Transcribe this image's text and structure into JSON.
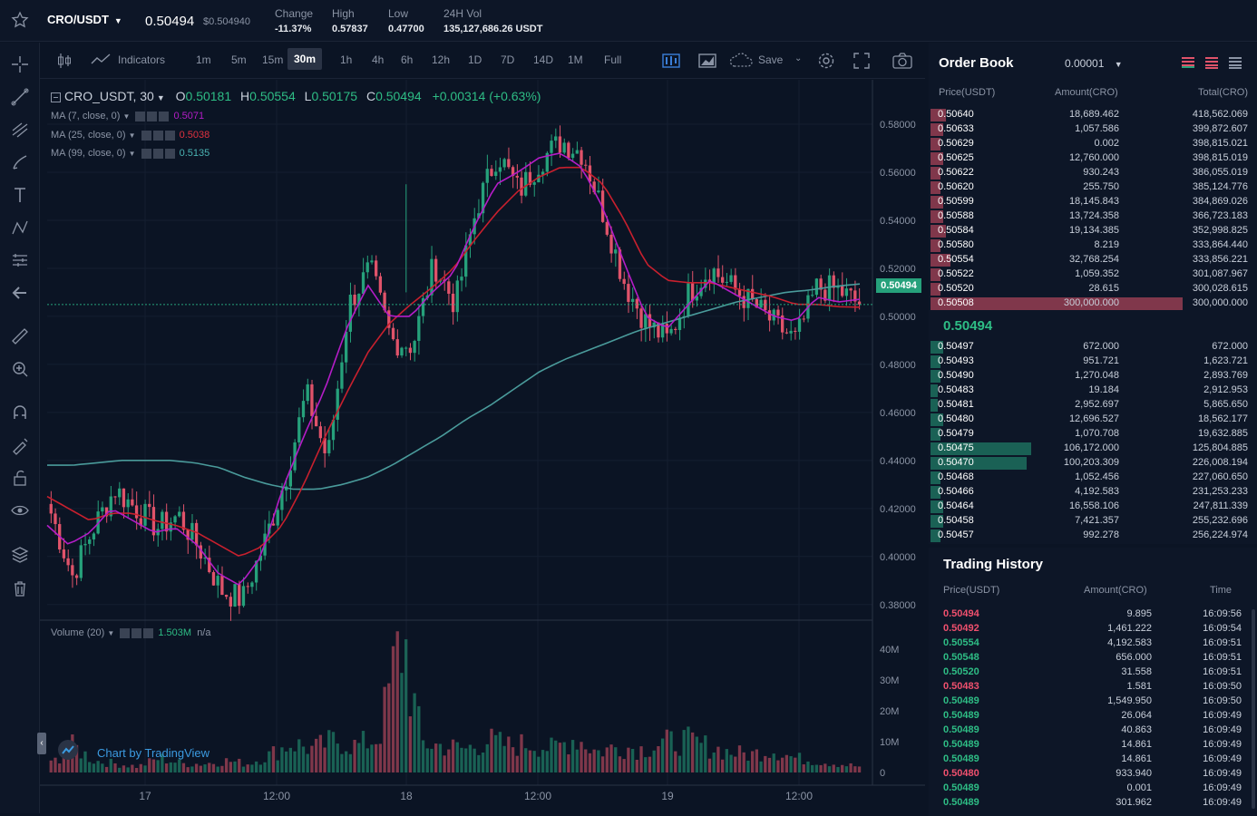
{
  "header": {
    "symbol": "CRO/USDT",
    "caret": "▼",
    "price": "0.50494",
    "price_usd": "$0.504940",
    "change_label": "Change",
    "change_value": "-11.37%",
    "high_label": "High",
    "high_value": "0.57837",
    "low_label": "Low",
    "low_value": "0.47700",
    "vol_label": "24H Vol",
    "vol_value": "135,127,686.26 USDT"
  },
  "toolbar": {
    "indicators": "Indicators",
    "intervals": [
      "1m",
      "5m",
      "15m",
      "30m",
      "1h",
      "4h",
      "6h",
      "12h",
      "1D",
      "7D",
      "14D",
      "1M",
      "Full"
    ],
    "active_interval": "30m",
    "save": "Save"
  },
  "legend": {
    "symbol": "CRO_USDT, 30",
    "o_label": "O",
    "o": "0.50181",
    "h_label": "H",
    "h": "0.50554",
    "l_label": "L",
    "l": "0.50175",
    "c_label": "C",
    "c": "0.50494",
    "chg": "+0.00314 (+0.63%)",
    "ma7_label": "MA (7, close, 0)",
    "ma7_value": "0.5071",
    "ma25_label": "MA (25, close, 0)",
    "ma25_value": "0.5038",
    "ma99_label": "MA (99, close, 0)",
    "ma99_value": "0.5135",
    "volume_label": "Volume (20)",
    "volume_value": "1.503M",
    "volume_na": "n/a",
    "last_price_tag": "0.50494",
    "attribution": "Chart by TradingView"
  },
  "colors": {
    "up": "#26a17b",
    "down": "#e0536a",
    "ma7": "#b41dc7",
    "ma25": "#c8202e",
    "ma99": "#4a9b9b",
    "bg": "#0b1424"
  },
  "chart_data": {
    "type": "candlestick",
    "y_ticks": [
      "0.58000",
      "0.56000",
      "0.54000",
      "0.52000",
      "0.50000",
      "0.48000",
      "0.46000",
      "0.44000",
      "0.42000",
      "0.40000",
      "0.38000"
    ],
    "ylim": [
      0.3735,
      0.5985
    ],
    "x_ticks": [
      "17",
      "12:00",
      "18",
      "12:00",
      "19",
      "12:00"
    ],
    "volume_ticks": [
      "40M",
      "30M",
      "20M",
      "10M",
      "0"
    ],
    "volume_max": 45000000,
    "close_anchors": [
      0.418,
      0.392,
      0.412,
      0.428,
      0.42,
      0.412,
      0.417,
      0.403,
      0.386,
      0.382,
      0.405,
      0.432,
      0.468,
      0.44,
      0.505,
      0.52,
      0.49,
      0.488,
      0.522,
      0.505,
      0.545,
      0.568,
      0.552,
      0.565,
      0.573,
      0.568,
      0.542,
      0.513,
      0.497,
      0.49,
      0.51,
      0.52,
      0.512,
      0.505,
      0.497,
      0.49,
      0.512,
      0.511,
      0.50494
    ],
    "ma7_anchors": [
      0.413,
      0.405,
      0.41,
      0.42,
      0.415,
      0.41,
      0.412,
      0.405,
      0.393,
      0.388,
      0.4,
      0.428,
      0.45,
      0.47,
      0.495,
      0.513,
      0.5,
      0.5,
      0.51,
      0.518,
      0.538,
      0.555,
      0.56,
      0.566,
      0.568,
      0.562,
      0.545,
      0.522,
      0.5,
      0.495,
      0.505,
      0.515,
      0.51,
      0.505,
      0.5,
      0.498,
      0.508,
      0.506,
      0.5071
    ],
    "ma25_anchors": [
      0.425,
      0.42,
      0.415,
      0.418,
      0.418,
      0.415,
      0.413,
      0.41,
      0.405,
      0.4,
      0.404,
      0.413,
      0.43,
      0.45,
      0.468,
      0.485,
      0.497,
      0.505,
      0.512,
      0.52,
      0.532,
      0.543,
      0.552,
      0.558,
      0.562,
      0.562,
      0.555,
      0.54,
      0.522,
      0.515,
      0.514,
      0.514,
      0.512,
      0.51,
      0.508,
      0.505,
      0.505,
      0.504,
      0.5038
    ],
    "ma99_anchors": [
      0.438,
      0.438,
      0.439,
      0.44,
      0.44,
      0.44,
      0.439,
      0.437,
      0.433,
      0.43,
      0.428,
      0.428,
      0.43,
      0.433,
      0.438,
      0.444,
      0.45,
      0.457,
      0.463,
      0.47,
      0.477,
      0.482,
      0.486,
      0.49,
      0.494,
      0.497,
      0.5,
      0.503,
      0.506,
      0.508,
      0.51,
      0.511,
      0.5125,
      0.5135
    ],
    "volume_anchors": [
      3,
      9,
      4,
      3,
      2,
      5,
      3,
      3,
      4,
      3,
      6,
      10,
      8,
      11,
      9,
      12,
      45,
      10,
      9,
      8,
      11,
      9,
      10,
      8,
      12,
      7,
      9,
      8,
      10,
      11,
      9,
      7,
      6,
      8,
      5,
      4,
      3,
      2
    ]
  },
  "orderbook": {
    "title": "Order Book",
    "precision": "0.00001",
    "cols": [
      "Price(USDT)",
      "Amount(CRO)",
      "Total(CRO)"
    ],
    "mid_price": "0.50494",
    "asks": [
      {
        "p": "0.50640",
        "a": "18,689.462",
        "t": "418,562.069",
        "d": 0.06
      },
      {
        "p": "0.50633",
        "a": "1,057.586",
        "t": "399,872.607",
        "d": 0.05
      },
      {
        "p": "0.50629",
        "a": "0.002",
        "t": "398,815.021",
        "d": 0.04
      },
      {
        "p": "0.50625",
        "a": "12,760.000",
        "t": "398,815.019",
        "d": 0.05
      },
      {
        "p": "0.50622",
        "a": "930.243",
        "t": "386,055.019",
        "d": 0.04
      },
      {
        "p": "0.50620",
        "a": "255.750",
        "t": "385,124.776",
        "d": 0.04
      },
      {
        "p": "0.50599",
        "a": "18,145.843",
        "t": "384,869.026",
        "d": 0.05
      },
      {
        "p": "0.50588",
        "a": "13,724.358",
        "t": "366,723.183",
        "d": 0.05
      },
      {
        "p": "0.50584",
        "a": "19,134.385",
        "t": "352,998.825",
        "d": 0.06
      },
      {
        "p": "0.50580",
        "a": "8.219",
        "t": "333,864.440",
        "d": 0.04
      },
      {
        "p": "0.50554",
        "a": "32,768.254",
        "t": "333,856.221",
        "d": 0.08
      },
      {
        "p": "0.50522",
        "a": "1,059.352",
        "t": "301,087.967",
        "d": 0.04
      },
      {
        "p": "0.50520",
        "a": "28.615",
        "t": "300,028.615",
        "d": 0.04
      },
      {
        "p": "0.50508",
        "a": "300,000.000",
        "t": "300,000.000",
        "d": 1.0
      }
    ],
    "bids": [
      {
        "p": "0.50497",
        "a": "672.000",
        "t": "672.000",
        "d": 0.05
      },
      {
        "p": "0.50493",
        "a": "951.721",
        "t": "1,623.721",
        "d": 0.04
      },
      {
        "p": "0.50490",
        "a": "1,270.048",
        "t": "2,893.769",
        "d": 0.04
      },
      {
        "p": "0.50483",
        "a": "19.184",
        "t": "2,912.953",
        "d": 0.03
      },
      {
        "p": "0.50481",
        "a": "2,952.697",
        "t": "5,865.650",
        "d": 0.03
      },
      {
        "p": "0.50480",
        "a": "12,696.527",
        "t": "18,562.177",
        "d": 0.05
      },
      {
        "p": "0.50479",
        "a": "1,070.708",
        "t": "19,632.885",
        "d": 0.04
      },
      {
        "p": "0.50475",
        "a": "106,172.000",
        "t": "125,804.885",
        "d": 0.4
      },
      {
        "p": "0.50470",
        "a": "100,203.309",
        "t": "226,008.194",
        "d": 0.38
      },
      {
        "p": "0.50468",
        "a": "1,052.456",
        "t": "227,060.650",
        "d": 0.04
      },
      {
        "p": "0.50466",
        "a": "4,192.583",
        "t": "231,253.233",
        "d": 0.04
      },
      {
        "p": "0.50464",
        "a": "16,558.106",
        "t": "247,811.339",
        "d": 0.05
      },
      {
        "p": "0.50458",
        "a": "7,421.357",
        "t": "255,232.696",
        "d": 0.05
      },
      {
        "p": "0.50457",
        "a": "992.278",
        "t": "256,224.974",
        "d": 0.04
      }
    ]
  },
  "history": {
    "title": "Trading History",
    "cols": [
      "Price(USDT)",
      "Amount(CRO)",
      "Time"
    ],
    "rows": [
      {
        "p": "0.50494",
        "a": "9.895",
        "t": "16:09:56",
        "s": "sell"
      },
      {
        "p": "0.50492",
        "a": "1,461.222",
        "t": "16:09:54",
        "s": "sell"
      },
      {
        "p": "0.50554",
        "a": "4,192.583",
        "t": "16:09:51",
        "s": "buy"
      },
      {
        "p": "0.50548",
        "a": "656.000",
        "t": "16:09:51",
        "s": "buy"
      },
      {
        "p": "0.50520",
        "a": "31.558",
        "t": "16:09:51",
        "s": "buy"
      },
      {
        "p": "0.50483",
        "a": "1.581",
        "t": "16:09:50",
        "s": "sell"
      },
      {
        "p": "0.50489",
        "a": "1,549.950",
        "t": "16:09:50",
        "s": "buy"
      },
      {
        "p": "0.50489",
        "a": "26.064",
        "t": "16:09:49",
        "s": "buy"
      },
      {
        "p": "0.50489",
        "a": "40.863",
        "t": "16:09:49",
        "s": "buy"
      },
      {
        "p": "0.50489",
        "a": "14.861",
        "t": "16:09:49",
        "s": "buy"
      },
      {
        "p": "0.50489",
        "a": "14.861",
        "t": "16:09:49",
        "s": "buy"
      },
      {
        "p": "0.50480",
        "a": "933.940",
        "t": "16:09:49",
        "s": "sell"
      },
      {
        "p": "0.50489",
        "a": "0.001",
        "t": "16:09:49",
        "s": "buy"
      },
      {
        "p": "0.50489",
        "a": "301.962",
        "t": "16:09:49",
        "s": "buy"
      }
    ]
  }
}
